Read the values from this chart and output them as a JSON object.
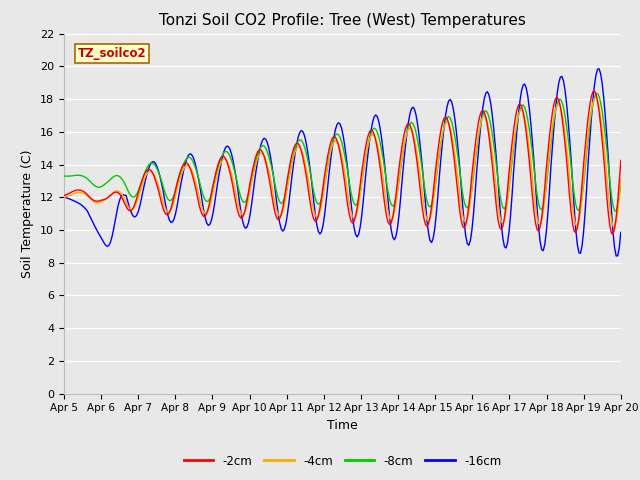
{
  "title": "Tonzi Soil CO2 Profile: Tree (West) Temperatures",
  "xlabel": "Time",
  "ylabel": "Soil Temperature (C)",
  "ylim": [
    0,
    22
  ],
  "yticks": [
    0,
    2,
    4,
    6,
    8,
    10,
    12,
    14,
    16,
    18,
    20,
    22
  ],
  "xtick_labels": [
    "Apr 5",
    "Apr 6",
    "Apr 7",
    "Apr 8",
    "Apr 9",
    "Apr 10",
    "Apr 11",
    "Apr 12",
    "Apr 13",
    "Apr 14",
    "Apr 15",
    "Apr 16",
    "Apr 17",
    "Apr 18",
    "Apr 19",
    "Apr 20"
  ],
  "legend_label": "TZ_soilco2",
  "series_labels": [
    "-2cm",
    "-4cm",
    "-8cm",
    "-16cm"
  ],
  "series_colors": [
    "#ff0000",
    "#ffaa00",
    "#00cc00",
    "#0000ff"
  ],
  "plot_bg_color": "#e8e8e8",
  "grid_color": "#ffffff",
  "title_fontsize": 11,
  "axis_fontsize": 9,
  "tick_fontsize": 8
}
